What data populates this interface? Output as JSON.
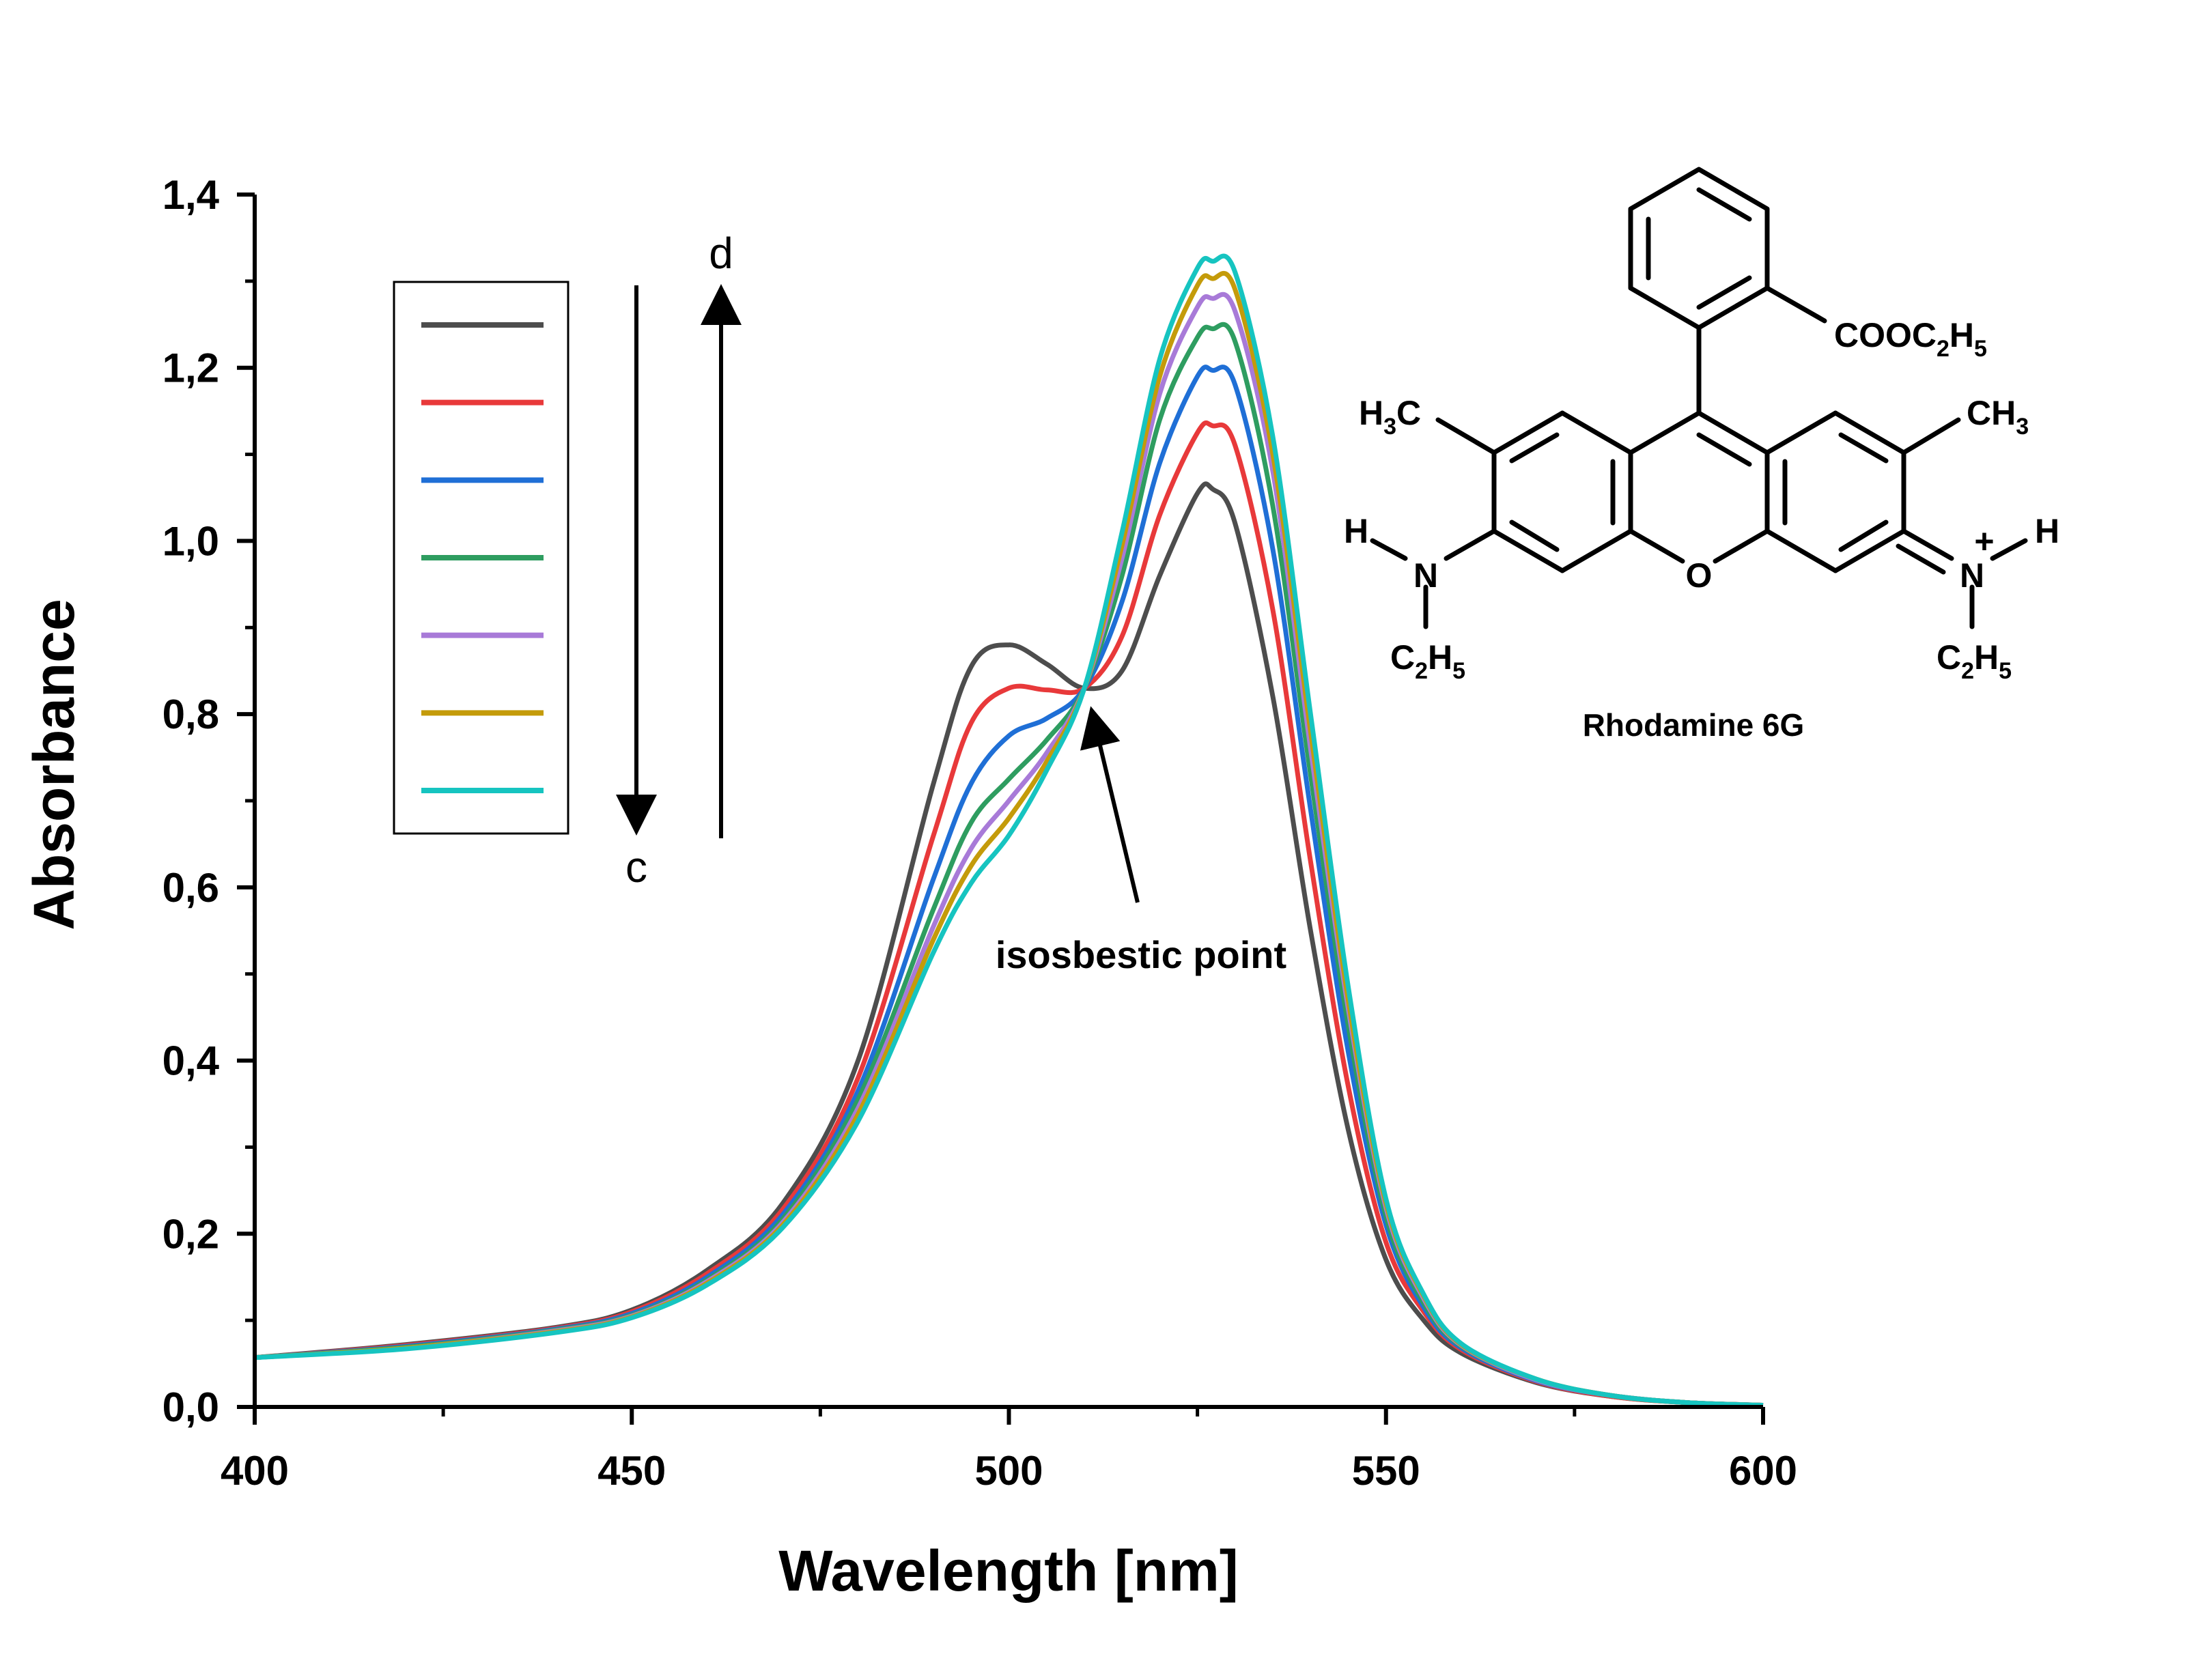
{
  "chart_data": {
    "type": "line",
    "xlabel": "Wavelength [nm]",
    "ylabel": "Absorbance",
    "xlim": [
      400,
      600
    ],
    "ylim": [
      0.0,
      1.4
    ],
    "x_ticks": [
      "400",
      "450",
      "500",
      "550",
      "600"
    ],
    "y_ticks": [
      "0,0",
      "0,2",
      "0,4",
      "0,6",
      "0,8",
      "1,0",
      "1,2",
      "1,4"
    ],
    "legend_placement": "top-left",
    "grid": false,
    "x": [
      400,
      420,
      440,
      450,
      460,
      470,
      480,
      490,
      495,
      500,
      505,
      510,
      515,
      520,
      525,
      527,
      530,
      535,
      540,
      545,
      550,
      555,
      560,
      570,
      580,
      590,
      600
    ],
    "series": [
      {
        "color": "#4d4d4d",
        "values": [
          0.057,
          0.072,
          0.092,
          0.112,
          0.158,
          0.235,
          0.4,
          0.72,
          0.855,
          0.88,
          0.858,
          0.83,
          0.85,
          0.96,
          1.055,
          1.06,
          1.02,
          0.82,
          0.55,
          0.32,
          0.17,
          0.1,
          0.062,
          0.028,
          0.012,
          0.005,
          0.002
        ]
      },
      {
        "color": "#e8393a",
        "values": [
          0.057,
          0.071,
          0.091,
          0.11,
          0.154,
          0.228,
          0.38,
          0.66,
          0.79,
          0.83,
          0.828,
          0.83,
          0.89,
          1.03,
          1.125,
          1.133,
          1.11,
          0.92,
          0.63,
          0.37,
          0.19,
          0.11,
          0.066,
          0.029,
          0.012,
          0.005,
          0.002
        ]
      },
      {
        "color": "#1f6fd6",
        "values": [
          0.057,
          0.07,
          0.09,
          0.108,
          0.15,
          0.222,
          0.365,
          0.61,
          0.72,
          0.775,
          0.795,
          0.83,
          0.93,
          1.09,
          1.19,
          1.197,
          1.18,
          0.99,
          0.69,
          0.41,
          0.21,
          0.115,
          0.068,
          0.03,
          0.013,
          0.005,
          0.002
        ]
      },
      {
        "color": "#2e9d60",
        "values": [
          0.057,
          0.069,
          0.089,
          0.106,
          0.147,
          0.217,
          0.355,
          0.575,
          0.675,
          0.725,
          0.77,
          0.83,
          0.96,
          1.14,
          1.235,
          1.245,
          1.23,
          1.04,
          0.73,
          0.44,
          0.22,
          0.12,
          0.07,
          0.031,
          0.013,
          0.005,
          0.002
        ]
      },
      {
        "color": "#a87ad8",
        "values": [
          0.057,
          0.068,
          0.088,
          0.105,
          0.145,
          0.213,
          0.345,
          0.555,
          0.645,
          0.7,
          0.755,
          0.83,
          0.98,
          1.17,
          1.27,
          1.28,
          1.265,
          1.08,
          0.76,
          0.46,
          0.23,
          0.125,
          0.071,
          0.031,
          0.013,
          0.005,
          0.002
        ]
      },
      {
        "color": "#c49b0a",
        "values": [
          0.057,
          0.068,
          0.087,
          0.104,
          0.143,
          0.21,
          0.338,
          0.54,
          0.625,
          0.68,
          0.745,
          0.83,
          0.995,
          1.19,
          1.295,
          1.303,
          1.29,
          1.1,
          0.78,
          0.47,
          0.235,
          0.128,
          0.072,
          0.032,
          0.013,
          0.005,
          0.002
        ]
      },
      {
        "color": "#16c4c0",
        "values": [
          0.057,
          0.067,
          0.086,
          0.103,
          0.141,
          0.207,
          0.33,
          0.525,
          0.605,
          0.66,
          0.735,
          0.83,
          1.01,
          1.21,
          1.315,
          1.323,
          1.31,
          1.12,
          0.8,
          0.485,
          0.24,
          0.13,
          0.073,
          0.032,
          0.013,
          0.005,
          0.002
        ]
      }
    ],
    "annotations": {
      "isosbestic": {
        "text": "isosbestic point",
        "x": 510,
        "y": 0.83
      },
      "arrow_down_label": "c",
      "arrow_up_label": "d"
    }
  },
  "structure": {
    "name": "Rhodamine 6G",
    "labels": {
      "cooc2h5_main": "COOC",
      "cooc2h5_sub1": "2",
      "cooc2h5_main2": "H",
      "cooc2h5_sub2": "5",
      "h3c_main": "H",
      "h3c_sub": "3",
      "h3c_main2": "C",
      "ch3_main": "CH",
      "ch3_sub": "3",
      "h_left": "H",
      "n_left": "N",
      "o_ring": "O",
      "n_right": "N",
      "plus": "+",
      "h_right": "H",
      "c2h5_left_main": "C",
      "c2h5_left_sub1": "2",
      "c2h5_left_main2": "H",
      "c2h5_left_sub2": "5",
      "c2h5_right_main": "C",
      "c2h5_right_sub1": "2",
      "c2h5_right_main2": "H",
      "c2h5_right_sub2": "5"
    }
  }
}
